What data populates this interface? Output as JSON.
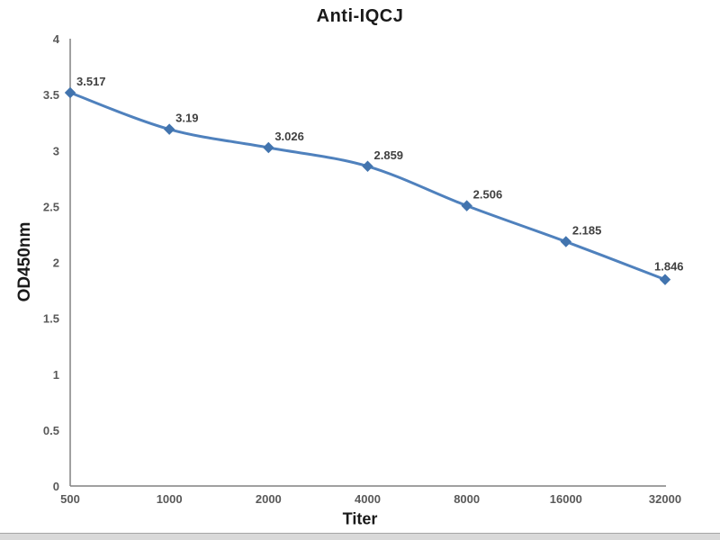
{
  "title": "Anti-IQCJ",
  "chart_data": {
    "type": "line",
    "title": "Anti-IQCJ",
    "xlabel": "Titer",
    "ylabel": "OD450nm",
    "categories": [
      "500",
      "1000",
      "2000",
      "4000",
      "8000",
      "16000",
      "32000"
    ],
    "series": [
      {
        "name": "Anti-IQCJ",
        "values": [
          3.517,
          3.19,
          3.026,
          2.859,
          2.506,
          2.185,
          1.846
        ]
      }
    ],
    "data_labels": [
      "3.517",
      "3.19",
      "3.026",
      "2.859",
      "2.506",
      "2.185",
      "1.846"
    ],
    "ylim": [
      0,
      4
    ],
    "y_tick_values": [
      0,
      0.5,
      1,
      1.5,
      2,
      2.5,
      3,
      3.5,
      4
    ],
    "x_scale": "categorical-doubling",
    "grid": false,
    "legend_position": "none",
    "marker_shape": "diamond",
    "colors": {
      "line": "#4f81bd",
      "marker": "#4274ae",
      "axis": "#808080",
      "tick_label": "#595959",
      "data_label": "#404040",
      "title": "#1a1a1a",
      "bottom_bar": "#d9d9d9",
      "bottom_bar_border": "#a6a6a6"
    }
  }
}
